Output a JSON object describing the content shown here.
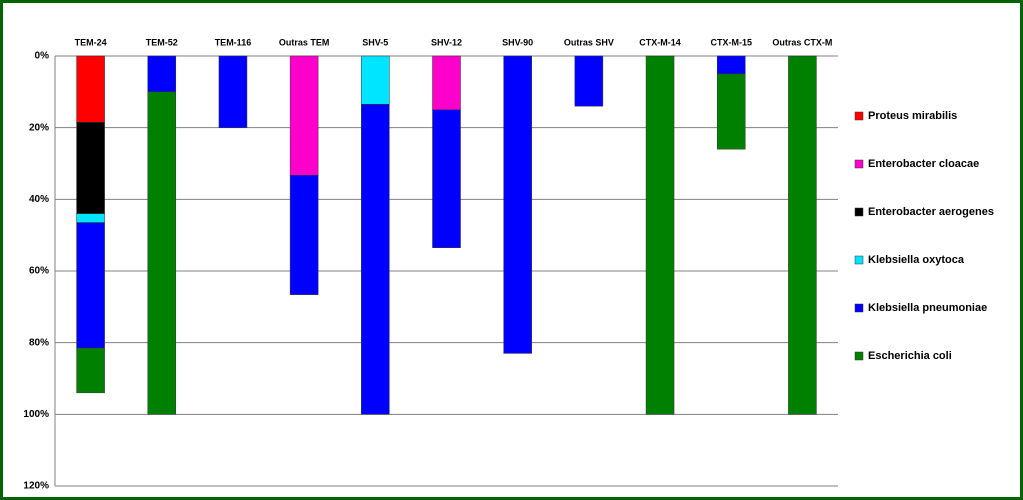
{
  "chart_data": {
    "type": "bar",
    "stacked": true,
    "reversed_y": true,
    "categories": [
      "TEM-24",
      "TEM-52",
      "TEM-116",
      "Outras TEM",
      "SHV-5",
      "SHV-12",
      "SHV-90",
      "Outras SHV",
      "CTX-M-14",
      "CTX-M-15",
      "Outras CTX-M"
    ],
    "series": [
      {
        "name": "Proteus mirabilis",
        "color": "#ff0000",
        "values": [
          18.5,
          0,
          0,
          0,
          0,
          0,
          0,
          0,
          0,
          0,
          0
        ]
      },
      {
        "name": "Enterobacter cloacae",
        "color": "#ff00cc",
        "values": [
          0,
          0,
          0,
          33.3,
          0,
          15,
          0,
          0,
          0,
          0,
          0
        ]
      },
      {
        "name": "Enterobacter aerogenes",
        "color": "#000000",
        "values": [
          25.5,
          0,
          0,
          0,
          0,
          0,
          0,
          0,
          0,
          0,
          0
        ]
      },
      {
        "name": "Klebsiella oxytoca",
        "color": "#00e5ff",
        "values": [
          2.5,
          0,
          0,
          0,
          13.5,
          0,
          0,
          0,
          0,
          0,
          0
        ]
      },
      {
        "name": "Klebsiella pneumoniae",
        "color": "#0000ff",
        "values": [
          35,
          10,
          20,
          33.3,
          86.5,
          38.5,
          83,
          14,
          0,
          5,
          0
        ]
      },
      {
        "name": "Escherichia coli",
        "color": "#008000",
        "values": [
          12.5,
          90,
          0,
          0,
          0,
          0,
          0,
          0,
          100,
          21,
          100
        ]
      }
    ],
    "ylim": [
      0,
      120
    ],
    "yticks": [
      {
        "value": 0,
        "label": "0%"
      },
      {
        "value": 20,
        "label": "20%"
      },
      {
        "value": 40,
        "label": "40%"
      },
      {
        "value": 60,
        "label": "60%"
      },
      {
        "value": 80,
        "label": "80%"
      },
      {
        "value": 100,
        "label": "100%"
      },
      {
        "value": 120,
        "label": "120%"
      }
    ],
    "grid": true,
    "legend": "right"
  }
}
